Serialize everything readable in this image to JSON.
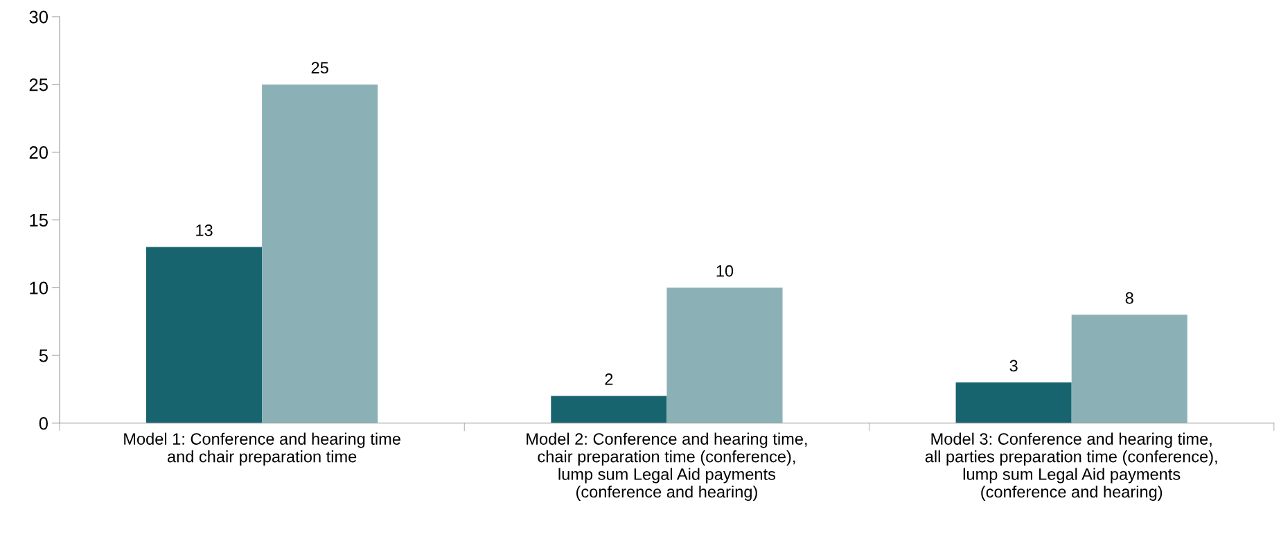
{
  "chart_data": {
    "type": "bar",
    "categories": [
      "Model 1: Conference and hearing time\nand chair preparation time",
      "Model 2: Conference and hearing time,\nchair preparation time (conference),\nlump sum Legal Aid payments\n(conference and hearing)",
      "Model 3: Conference and hearing time,\nall parties preparation time (conference),\nlump sum Legal Aid payments\n(conference and hearing)"
    ],
    "series": [
      {
        "color": "#17636e",
        "values": [
          13,
          2,
          3
        ]
      },
      {
        "color": "#8bb1b7",
        "values": [
          25,
          10,
          8
        ]
      }
    ],
    "ylim": [
      0,
      30
    ],
    "yticks": [
      0,
      5,
      10,
      15,
      20,
      25,
      30
    ],
    "data_labels": true,
    "grid": false,
    "legend": false
  }
}
